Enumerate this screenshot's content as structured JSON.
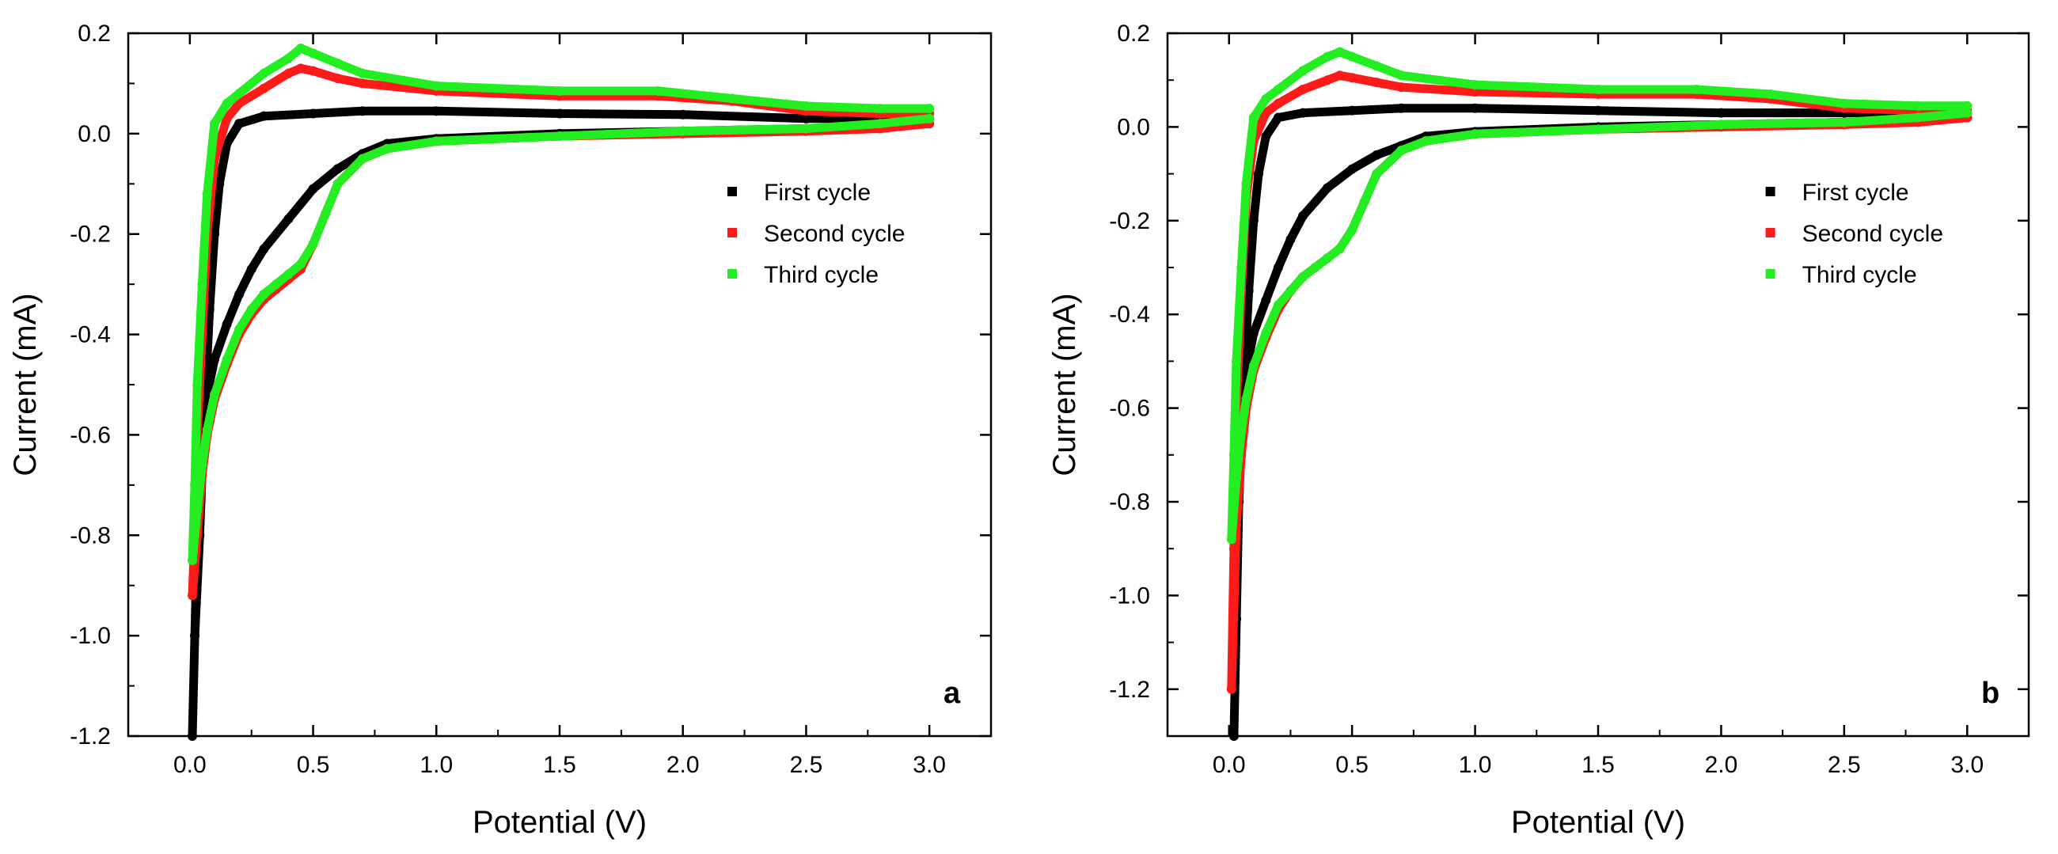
{
  "colors": {
    "first": "#000000",
    "second": "#ff1a1a",
    "third": "#22ee22",
    "axis": "#000000"
  },
  "chart_data": [
    {
      "type": "scatter",
      "panel_label": "a",
      "xlabel": "Potential (V)",
      "ylabel": "Current (mA)",
      "xlim": [
        -0.25,
        3.25
      ],
      "ylim": [
        -1.2,
        0.2
      ],
      "xticks": [
        0.0,
        0.5,
        1.0,
        1.5,
        2.0,
        2.5,
        3.0
      ],
      "xtick_labels": [
        "0.0",
        "0.5",
        "1.0",
        "1.5",
        "2.0",
        "2.5",
        "3.0"
      ],
      "yticks": [
        -1.2,
        -1.0,
        -0.8,
        -0.6,
        -0.4,
        -0.2,
        0.0,
        0.2
      ],
      "ytick_labels": [
        "-1.2",
        "-1.0",
        "-0.8",
        "-0.6",
        "-0.4",
        "-0.2",
        "0.0",
        "0.2"
      ],
      "legend_position": "upper-right",
      "series": [
        {
          "name": "First cycle",
          "color_key": "first",
          "x": [
            3.0,
            2.8,
            2.5,
            2.0,
            1.5,
            1.0,
            0.8,
            0.7,
            0.6,
            0.5,
            0.4,
            0.3,
            0.25,
            0.2,
            0.15,
            0.1,
            0.07,
            0.05,
            0.03,
            0.02,
            0.01,
            0.02,
            0.04,
            0.06,
            0.08,
            0.1,
            0.12,
            0.15,
            0.2,
            0.3,
            0.5,
            0.7,
            1.0,
            1.5,
            2.0,
            2.5,
            2.8,
            3.0
          ],
          "y": [
            0.02,
            0.015,
            0.01,
            0.005,
            0.0,
            -0.01,
            -0.02,
            -0.04,
            -0.07,
            -0.11,
            -0.17,
            -0.23,
            -0.27,
            -0.32,
            -0.38,
            -0.45,
            -0.52,
            -0.62,
            -0.8,
            -1.0,
            -1.2,
            -1.0,
            -0.8,
            -0.55,
            -0.35,
            -0.2,
            -0.1,
            -0.02,
            0.02,
            0.035,
            0.04,
            0.045,
            0.045,
            0.04,
            0.038,
            0.03,
            0.03,
            0.03
          ]
        },
        {
          "name": "Second cycle",
          "color_key": "second",
          "x": [
            3.0,
            2.8,
            2.5,
            2.0,
            1.5,
            1.0,
            0.8,
            0.7,
            0.6,
            0.55,
            0.5,
            0.45,
            0.4,
            0.35,
            0.3,
            0.25,
            0.2,
            0.15,
            0.1,
            0.07,
            0.05,
            0.03,
            0.01,
            0.02,
            0.03,
            0.05,
            0.07,
            0.1,
            0.15,
            0.2,
            0.3,
            0.4,
            0.45,
            0.5,
            0.6,
            0.7,
            1.0,
            1.5,
            1.9,
            2.2,
            2.5,
            2.8,
            3.0
          ],
          "y": [
            0.02,
            0.01,
            0.005,
            0.0,
            -0.005,
            -0.015,
            -0.03,
            -0.05,
            -0.1,
            -0.16,
            -0.22,
            -0.27,
            -0.29,
            -0.31,
            -0.33,
            -0.36,
            -0.4,
            -0.46,
            -0.53,
            -0.6,
            -0.68,
            -0.8,
            -0.92,
            -0.8,
            -0.6,
            -0.4,
            -0.2,
            -0.05,
            0.03,
            0.06,
            0.09,
            0.12,
            0.13,
            0.125,
            0.11,
            0.1,
            0.085,
            0.075,
            0.075,
            0.065,
            0.045,
            0.04,
            0.04
          ]
        },
        {
          "name": "Third cycle",
          "color_key": "third",
          "x": [
            3.0,
            2.8,
            2.5,
            2.0,
            1.5,
            1.0,
            0.8,
            0.7,
            0.6,
            0.55,
            0.5,
            0.45,
            0.4,
            0.35,
            0.3,
            0.25,
            0.2,
            0.15,
            0.1,
            0.07,
            0.05,
            0.03,
            0.01,
            0.02,
            0.03,
            0.05,
            0.07,
            0.1,
            0.15,
            0.2,
            0.3,
            0.4,
            0.45,
            0.5,
            0.6,
            0.7,
            1.0,
            1.5,
            1.9,
            2.2,
            2.5,
            2.8,
            3.0
          ],
          "y": [
            0.03,
            0.02,
            0.01,
            0.005,
            -0.005,
            -0.015,
            -0.03,
            -0.05,
            -0.1,
            -0.16,
            -0.22,
            -0.26,
            -0.28,
            -0.3,
            -0.32,
            -0.35,
            -0.39,
            -0.45,
            -0.52,
            -0.59,
            -0.66,
            -0.75,
            -0.85,
            -0.7,
            -0.5,
            -0.3,
            -0.12,
            0.02,
            0.06,
            0.08,
            0.12,
            0.15,
            0.17,
            0.16,
            0.14,
            0.12,
            0.095,
            0.085,
            0.085,
            0.07,
            0.055,
            0.05,
            0.05
          ]
        }
      ]
    },
    {
      "type": "scatter",
      "panel_label": "b",
      "xlabel": "Potential (V)",
      "ylabel": "Current (mA)",
      "xlim": [
        -0.25,
        3.25
      ],
      "ylim": [
        -1.3,
        0.2
      ],
      "xticks": [
        0.0,
        0.5,
        1.0,
        1.5,
        2.0,
        2.5,
        3.0
      ],
      "xtick_labels": [
        "0.0",
        "0.5",
        "1.0",
        "1.5",
        "2.0",
        "2.5",
        "3.0"
      ],
      "yticks": [
        -1.2,
        -1.0,
        -0.8,
        -0.6,
        -0.4,
        -0.2,
        0.0,
        0.2
      ],
      "ytick_labels": [
        "-1.2",
        "-1.0",
        "-0.8",
        "-0.6",
        "-0.4",
        "-0.2",
        "0.0",
        "0.2"
      ],
      "legend_position": "upper-right",
      "series": [
        {
          "name": "First cycle",
          "color_key": "first",
          "x": [
            3.0,
            2.8,
            2.5,
            2.0,
            1.5,
            1.0,
            0.8,
            0.7,
            0.6,
            0.5,
            0.4,
            0.3,
            0.25,
            0.2,
            0.15,
            0.1,
            0.07,
            0.05,
            0.04,
            0.03,
            0.02,
            0.03,
            0.04,
            0.06,
            0.08,
            0.1,
            0.12,
            0.15,
            0.2,
            0.3,
            0.5,
            0.7,
            1.0,
            1.5,
            2.0,
            2.5,
            2.8,
            3.0
          ],
          "y": [
            0.02,
            0.015,
            0.01,
            0.005,
            0.0,
            -0.01,
            -0.02,
            -0.04,
            -0.06,
            -0.09,
            -0.13,
            -0.19,
            -0.24,
            -0.3,
            -0.37,
            -0.44,
            -0.52,
            -0.62,
            -0.8,
            -1.05,
            -1.3,
            -1.05,
            -0.8,
            -0.55,
            -0.35,
            -0.2,
            -0.1,
            -0.02,
            0.02,
            0.03,
            0.035,
            0.04,
            0.04,
            0.035,
            0.03,
            0.03,
            0.03,
            0.03
          ]
        },
        {
          "name": "Second cycle",
          "color_key": "second",
          "x": [
            3.0,
            2.8,
            2.5,
            2.0,
            1.5,
            1.0,
            0.8,
            0.7,
            0.6,
            0.55,
            0.5,
            0.45,
            0.4,
            0.35,
            0.3,
            0.25,
            0.2,
            0.15,
            0.1,
            0.07,
            0.05,
            0.03,
            0.01,
            0.02,
            0.03,
            0.05,
            0.07,
            0.1,
            0.15,
            0.2,
            0.3,
            0.4,
            0.45,
            0.5,
            0.6,
            0.7,
            1.0,
            1.5,
            1.9,
            2.2,
            2.5,
            2.8,
            3.0
          ],
          "y": [
            0.02,
            0.01,
            0.005,
            0.0,
            -0.005,
            -0.015,
            -0.03,
            -0.05,
            -0.1,
            -0.16,
            -0.22,
            -0.26,
            -0.28,
            -0.3,
            -0.32,
            -0.35,
            -0.39,
            -0.45,
            -0.52,
            -0.6,
            -0.7,
            -0.85,
            -1.2,
            -0.9,
            -0.6,
            -0.35,
            -0.15,
            -0.03,
            0.03,
            0.05,
            0.08,
            0.1,
            0.11,
            0.105,
            0.095,
            0.085,
            0.075,
            0.07,
            0.07,
            0.06,
            0.04,
            0.035,
            0.035
          ]
        },
        {
          "name": "Third cycle",
          "color_key": "third",
          "x": [
            3.0,
            2.8,
            2.5,
            2.0,
            1.5,
            1.0,
            0.8,
            0.7,
            0.6,
            0.55,
            0.5,
            0.45,
            0.4,
            0.35,
            0.3,
            0.25,
            0.2,
            0.15,
            0.1,
            0.07,
            0.05,
            0.03,
            0.01,
            0.02,
            0.03,
            0.05,
            0.07,
            0.1,
            0.15,
            0.2,
            0.3,
            0.4,
            0.45,
            0.5,
            0.6,
            0.7,
            1.0,
            1.5,
            1.9,
            2.2,
            2.5,
            2.8,
            3.0
          ],
          "y": [
            0.03,
            0.02,
            0.01,
            0.005,
            -0.005,
            -0.015,
            -0.03,
            -0.05,
            -0.1,
            -0.16,
            -0.22,
            -0.26,
            -0.28,
            -0.3,
            -0.32,
            -0.35,
            -0.38,
            -0.44,
            -0.51,
            -0.58,
            -0.65,
            -0.75,
            -0.88,
            -0.7,
            -0.5,
            -0.3,
            -0.12,
            0.02,
            0.06,
            0.08,
            0.12,
            0.15,
            0.16,
            0.15,
            0.13,
            0.11,
            0.09,
            0.08,
            0.08,
            0.07,
            0.05,
            0.045,
            0.045
          ]
        }
      ]
    }
  ]
}
